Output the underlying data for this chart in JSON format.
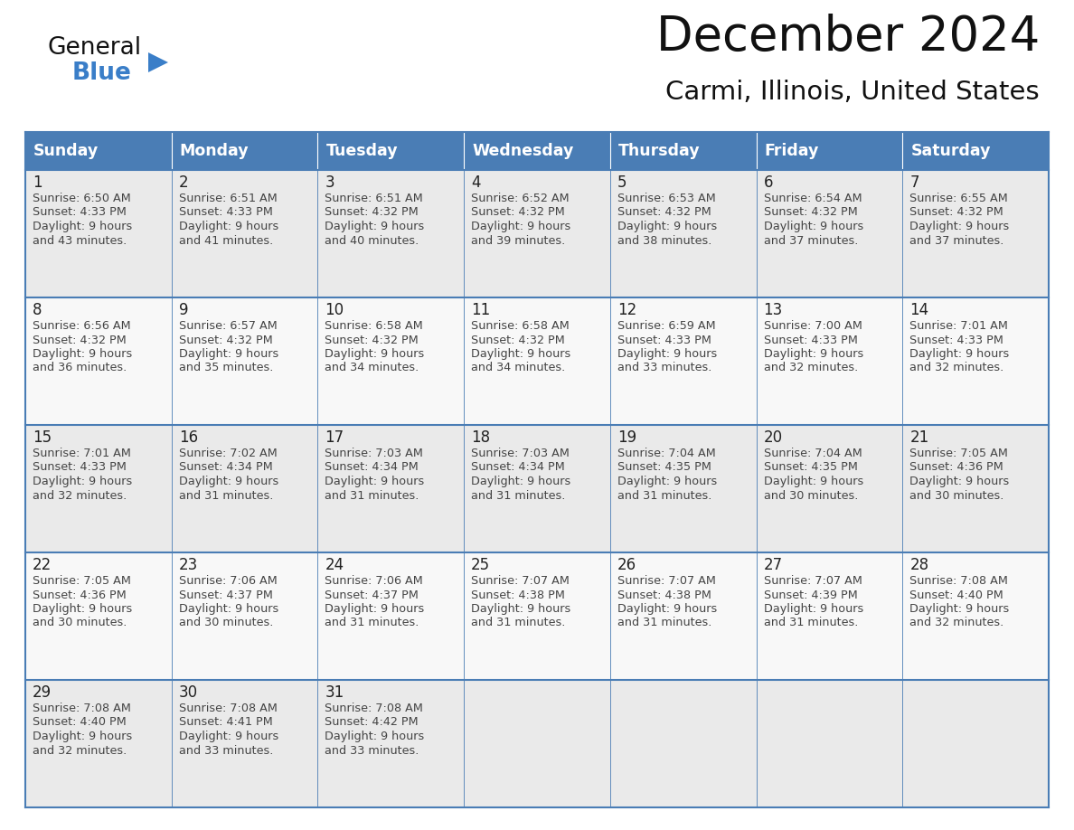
{
  "title": "December 2024",
  "subtitle": "Carmi, Illinois, United States",
  "days_of_week": [
    "Sunday",
    "Monday",
    "Tuesday",
    "Wednesday",
    "Thursday",
    "Friday",
    "Saturday"
  ],
  "header_bg": "#4A7DB5",
  "header_text": "#FFFFFF",
  "cell_bg_odd": "#EAEAEA",
  "cell_bg_even": "#F8F8F8",
  "cell_bg_empty": "#EAEAEA",
  "day_num_color": "#222222",
  "text_color": "#444444",
  "grid_color": "#4A7DB5",
  "title_color": "#111111",
  "subtitle_color": "#111111",
  "logo_general_color": "#111111",
  "logo_blue_color": "#3A7EC8",
  "calendar_data": [
    [
      {
        "day": 1,
        "sunrise": "6:50 AM",
        "sunset": "4:33 PM",
        "daylight": "9 hours and 43 minutes."
      },
      {
        "day": 2,
        "sunrise": "6:51 AM",
        "sunset": "4:33 PM",
        "daylight": "9 hours and 41 minutes."
      },
      {
        "day": 3,
        "sunrise": "6:51 AM",
        "sunset": "4:32 PM",
        "daylight": "9 hours and 40 minutes."
      },
      {
        "day": 4,
        "sunrise": "6:52 AM",
        "sunset": "4:32 PM",
        "daylight": "9 hours and 39 minutes."
      },
      {
        "day": 5,
        "sunrise": "6:53 AM",
        "sunset": "4:32 PM",
        "daylight": "9 hours and 38 minutes."
      },
      {
        "day": 6,
        "sunrise": "6:54 AM",
        "sunset": "4:32 PM",
        "daylight": "9 hours and 37 minutes."
      },
      {
        "day": 7,
        "sunrise": "6:55 AM",
        "sunset": "4:32 PM",
        "daylight": "9 hours and 37 minutes."
      }
    ],
    [
      {
        "day": 8,
        "sunrise": "6:56 AM",
        "sunset": "4:32 PM",
        "daylight": "9 hours and 36 minutes."
      },
      {
        "day": 9,
        "sunrise": "6:57 AM",
        "sunset": "4:32 PM",
        "daylight": "9 hours and 35 minutes."
      },
      {
        "day": 10,
        "sunrise": "6:58 AM",
        "sunset": "4:32 PM",
        "daylight": "9 hours and 34 minutes."
      },
      {
        "day": 11,
        "sunrise": "6:58 AM",
        "sunset": "4:32 PM",
        "daylight": "9 hours and 34 minutes."
      },
      {
        "day": 12,
        "sunrise": "6:59 AM",
        "sunset": "4:33 PM",
        "daylight": "9 hours and 33 minutes."
      },
      {
        "day": 13,
        "sunrise": "7:00 AM",
        "sunset": "4:33 PM",
        "daylight": "9 hours and 32 minutes."
      },
      {
        "day": 14,
        "sunrise": "7:01 AM",
        "sunset": "4:33 PM",
        "daylight": "9 hours and 32 minutes."
      }
    ],
    [
      {
        "day": 15,
        "sunrise": "7:01 AM",
        "sunset": "4:33 PM",
        "daylight": "9 hours and 32 minutes."
      },
      {
        "day": 16,
        "sunrise": "7:02 AM",
        "sunset": "4:34 PM",
        "daylight": "9 hours and 31 minutes."
      },
      {
        "day": 17,
        "sunrise": "7:03 AM",
        "sunset": "4:34 PM",
        "daylight": "9 hours and 31 minutes."
      },
      {
        "day": 18,
        "sunrise": "7:03 AM",
        "sunset": "4:34 PM",
        "daylight": "9 hours and 31 minutes."
      },
      {
        "day": 19,
        "sunrise": "7:04 AM",
        "sunset": "4:35 PM",
        "daylight": "9 hours and 31 minutes."
      },
      {
        "day": 20,
        "sunrise": "7:04 AM",
        "sunset": "4:35 PM",
        "daylight": "9 hours and 30 minutes."
      },
      {
        "day": 21,
        "sunrise": "7:05 AM",
        "sunset": "4:36 PM",
        "daylight": "9 hours and 30 minutes."
      }
    ],
    [
      {
        "day": 22,
        "sunrise": "7:05 AM",
        "sunset": "4:36 PM",
        "daylight": "9 hours and 30 minutes."
      },
      {
        "day": 23,
        "sunrise": "7:06 AM",
        "sunset": "4:37 PM",
        "daylight": "9 hours and 30 minutes."
      },
      {
        "day": 24,
        "sunrise": "7:06 AM",
        "sunset": "4:37 PM",
        "daylight": "9 hours and 31 minutes."
      },
      {
        "day": 25,
        "sunrise": "7:07 AM",
        "sunset": "4:38 PM",
        "daylight": "9 hours and 31 minutes."
      },
      {
        "day": 26,
        "sunrise": "7:07 AM",
        "sunset": "4:38 PM",
        "daylight": "9 hours and 31 minutes."
      },
      {
        "day": 27,
        "sunrise": "7:07 AM",
        "sunset": "4:39 PM",
        "daylight": "9 hours and 31 minutes."
      },
      {
        "day": 28,
        "sunrise": "7:08 AM",
        "sunset": "4:40 PM",
        "daylight": "9 hours and 32 minutes."
      }
    ],
    [
      {
        "day": 29,
        "sunrise": "7:08 AM",
        "sunset": "4:40 PM",
        "daylight": "9 hours and 32 minutes."
      },
      {
        "day": 30,
        "sunrise": "7:08 AM",
        "sunset": "4:41 PM",
        "daylight": "9 hours and 33 minutes."
      },
      {
        "day": 31,
        "sunrise": "7:08 AM",
        "sunset": "4:42 PM",
        "daylight": "9 hours and 33 minutes."
      },
      null,
      null,
      null,
      null
    ]
  ]
}
